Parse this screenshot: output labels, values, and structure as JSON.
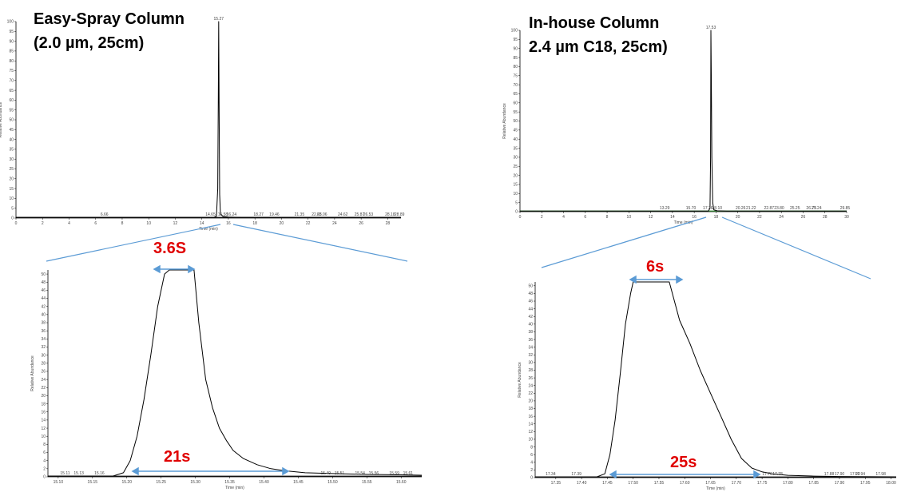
{
  "figure": {
    "left_title_line1": "Easy-Spray Column",
    "left_title_line2": "(2.0 µm, 25cm)",
    "right_title_line1": "In-house Column",
    "right_title_line2": "2.4 µm C18,  25cm)",
    "left_top_width_label": "3.6S",
    "left_base_width_label": "21s",
    "right_top_width_label": "6s",
    "right_base_width_label": "25s",
    "annotation_color": "#e00000",
    "arrow_color": "#5b9bd5",
    "zoom_line_color": "#5b9bd5"
  },
  "chart_data": [
    {
      "id": "left_overview",
      "type": "line",
      "xlabel": "Time (min)",
      "ylabel": "Relative Abundance",
      "xlim": [
        0,
        29
      ],
      "ylim": [
        0,
        100
      ],
      "xticks": [
        "0",
        "2",
        "4",
        "6",
        "8",
        "10",
        "12",
        "14",
        "16",
        "18",
        "20",
        "22",
        "24",
        "26",
        "28"
      ],
      "yticks": [
        "0",
        "5",
        "10",
        "15",
        "20",
        "25",
        "30",
        "35",
        "40",
        "45",
        "50",
        "55",
        "60",
        "65",
        "70",
        "75",
        "80",
        "85",
        "90",
        "95",
        "100"
      ],
      "x": [
        0,
        14.9,
        15.1,
        15.2,
        15.24,
        15.27,
        15.3,
        15.34,
        15.4,
        15.6,
        16.0,
        17.0,
        29
      ],
      "y": [
        0.3,
        0.3,
        1,
        15,
        60,
        100,
        58,
        12,
        2,
        0.8,
        0.5,
        0.3,
        0.3
      ],
      "peak_labels": [
        {
          "x": 15.27,
          "y": 100,
          "text": "15.27"
        },
        {
          "x": 6.66,
          "y": 1,
          "text": "6.66"
        },
        {
          "x": 14.65,
          "y": 1,
          "text": "14.65"
        },
        {
          "x": 15.58,
          "y": 1,
          "text": "15.58"
        },
        {
          "x": 16.24,
          "y": 1,
          "text": "16.24"
        },
        {
          "x": 18.27,
          "y": 1,
          "text": "18.27"
        },
        {
          "x": 19.46,
          "y": 1,
          "text": "19.46"
        },
        {
          "x": 21.35,
          "y": 1,
          "text": "21.35"
        },
        {
          "x": 22.65,
          "y": 1,
          "text": "22.65"
        },
        {
          "x": 23.06,
          "y": 1,
          "text": "23.06"
        },
        {
          "x": 24.62,
          "y": 1,
          "text": "24.62"
        },
        {
          "x": 25.87,
          "y": 1,
          "text": "25.87"
        },
        {
          "x": 26.53,
          "y": 1,
          "text": "26.53"
        },
        {
          "x": 28.18,
          "y": 1,
          "text": "28.18"
        },
        {
          "x": 28.89,
          "y": 1,
          "text": "28.89"
        }
      ]
    },
    {
      "id": "right_overview",
      "type": "line",
      "xlabel": "Time (min)",
      "ylabel": "Relative Abundance",
      "xlim": [
        0,
        30
      ],
      "ylim": [
        0,
        100
      ],
      "xticks": [
        "0",
        "2",
        "4",
        "6",
        "8",
        "10",
        "12",
        "14",
        "16",
        "18",
        "20",
        "22",
        "24",
        "26",
        "28",
        "30"
      ],
      "yticks": [
        "0",
        "5",
        "10",
        "15",
        "20",
        "25",
        "30",
        "35",
        "40",
        "45",
        "50",
        "55",
        "60",
        "65",
        "70",
        "75",
        "80",
        "85",
        "90",
        "95",
        "100"
      ],
      "x": [
        0,
        17.3,
        17.45,
        17.5,
        17.53,
        17.57,
        17.62,
        17.7,
        17.8,
        18.1,
        19.0,
        30
      ],
      "y": [
        0.3,
        0.3,
        2,
        30,
        100,
        75,
        30,
        5,
        1,
        0.5,
        0.3,
        0.3
      ],
      "peak_labels": [
        {
          "x": 17.53,
          "y": 100,
          "text": "17.53"
        },
        {
          "x": 13.29,
          "y": 1,
          "text": "13.29"
        },
        {
          "x": 15.7,
          "y": 1,
          "text": "15.70"
        },
        {
          "x": 17.26,
          "y": 1,
          "text": "17.26"
        },
        {
          "x": 18.1,
          "y": 1,
          "text": "18.10"
        },
        {
          "x": 20.26,
          "y": 1,
          "text": "20.26"
        },
        {
          "x": 21.22,
          "y": 1,
          "text": "21.22"
        },
        {
          "x": 22.87,
          "y": 1,
          "text": "22.87"
        },
        {
          "x": 23.8,
          "y": 1,
          "text": "23.80"
        },
        {
          "x": 25.25,
          "y": 1,
          "text": "25.25"
        },
        {
          "x": 26.75,
          "y": 1,
          "text": "26.75"
        },
        {
          "x": 27.24,
          "y": 1,
          "text": "27.24"
        },
        {
          "x": 29.85,
          "y": 1,
          "text": "29.85"
        }
      ]
    },
    {
      "id": "left_zoom",
      "type": "line",
      "xlabel": "Time (min)",
      "ylabel": "Relative Abundance",
      "xlim": [
        15.085,
        15.63
      ],
      "ylim": [
        0,
        51
      ],
      "xticks": [
        "15.10",
        "15.15",
        "15.20",
        "15.25",
        "15.30",
        "15.35",
        "15.40",
        "15.45",
        "15.50",
        "15.55",
        "15.60"
      ],
      "yticks": [
        "0",
        "2",
        "4",
        "6",
        "8",
        "10",
        "12",
        "14",
        "16",
        "18",
        "20",
        "22",
        "24",
        "26",
        "28",
        "30",
        "32",
        "34",
        "36",
        "38",
        "40",
        "42",
        "44",
        "46",
        "48",
        "50"
      ],
      "x": [
        15.085,
        15.18,
        15.195,
        15.205,
        15.215,
        15.225,
        15.235,
        15.245,
        15.255,
        15.262,
        15.298,
        15.305,
        15.315,
        15.325,
        15.335,
        15.345,
        15.355,
        15.37,
        15.39,
        15.41,
        15.43,
        15.46,
        15.5,
        15.55,
        15.6,
        15.63
      ],
      "y": [
        0.2,
        0.2,
        1,
        4,
        10,
        19,
        30,
        42,
        50,
        51,
        51,
        38,
        24,
        17,
        12,
        9,
        6.5,
        4.5,
        3,
        2,
        1.5,
        1,
        0.8,
        0.6,
        0.5,
        0.4
      ],
      "peak_labels": [
        {
          "x": 15.11,
          "y": 1,
          "text": "15.11"
        },
        {
          "x": 15.13,
          "y": 1,
          "text": "15.13"
        },
        {
          "x": 15.16,
          "y": 1,
          "text": "15.16"
        },
        {
          "x": 15.49,
          "y": 1,
          "text": "15.49"
        },
        {
          "x": 15.51,
          "y": 1,
          "text": "15.51"
        },
        {
          "x": 15.54,
          "y": 1,
          "text": "15.54"
        },
        {
          "x": 15.56,
          "y": 1,
          "text": "15.56"
        },
        {
          "x": 15.59,
          "y": 1,
          "text": "15.59"
        },
        {
          "x": 15.61,
          "y": 1,
          "text": "15.61"
        }
      ]
    },
    {
      "id": "right_zoom",
      "type": "line",
      "xlabel": "Time (min)",
      "ylabel": "Relative Abundance",
      "xlim": [
        17.31,
        18.01
      ],
      "ylim": [
        0,
        51
      ],
      "xticks": [
        "17.35",
        "17.40",
        "17.45",
        "17.50",
        "17.55",
        "17.60",
        "17.65",
        "17.70",
        "17.75",
        "17.80",
        "17.85",
        "17.90",
        "17.95",
        "18.00"
      ],
      "yticks": [
        "0",
        "2",
        "4",
        "6",
        "8",
        "10",
        "12",
        "14",
        "16",
        "18",
        "20",
        "22",
        "24",
        "26",
        "28",
        "30",
        "32",
        "34",
        "36",
        "38",
        "40",
        "42",
        "44",
        "46",
        "48",
        "50"
      ],
      "x": [
        17.31,
        17.43,
        17.445,
        17.455,
        17.465,
        17.475,
        17.485,
        17.495,
        17.5,
        17.57,
        17.59,
        17.61,
        17.63,
        17.65,
        17.67,
        17.69,
        17.71,
        17.73,
        17.75,
        17.77,
        17.8,
        17.85,
        17.9,
        18.01
      ],
      "y": [
        0.2,
        0.2,
        1,
        6,
        15,
        27,
        40,
        48,
        51,
        51,
        41,
        35,
        28,
        22,
        16,
        10,
        5,
        2.5,
        1.5,
        1,
        0.6,
        0.4,
        0.3,
        0.2
      ],
      "peak_labels": [
        {
          "x": 17.34,
          "y": 1,
          "text": "17.34"
        },
        {
          "x": 17.39,
          "y": 1,
          "text": "17.39"
        },
        {
          "x": 17.76,
          "y": 1,
          "text": "17.76"
        },
        {
          "x": 17.78,
          "y": 1,
          "text": "17.78"
        },
        {
          "x": 17.88,
          "y": 1,
          "text": "17.88"
        },
        {
          "x": 17.9,
          "y": 1,
          "text": "17.90"
        },
        {
          "x": 17.93,
          "y": 1,
          "text": "17.93"
        },
        {
          "x": 17.94,
          "y": 1,
          "text": "17.94"
        },
        {
          "x": 17.98,
          "y": 1,
          "text": "17.98"
        }
      ]
    }
  ]
}
